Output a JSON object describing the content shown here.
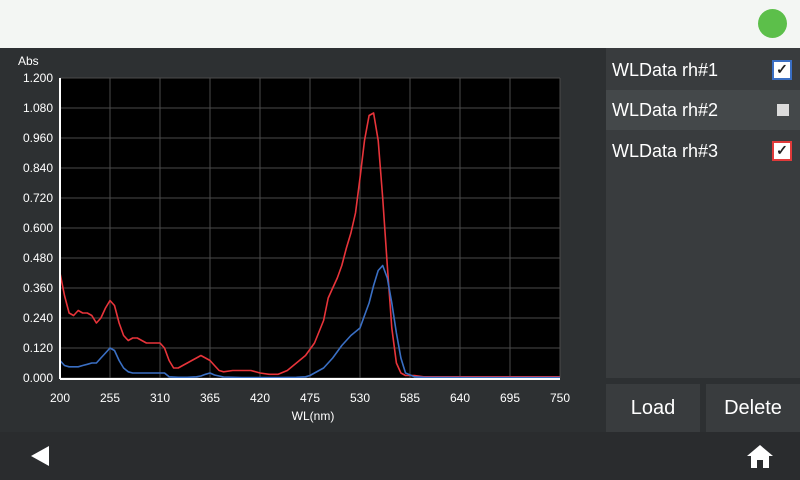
{
  "status": {
    "indicator_color": "#5cbf4a"
  },
  "series_list": [
    {
      "label": "WLData rh#1",
      "checked": true,
      "frame_color": "#3a6fc4"
    },
    {
      "label": "WLData rh#2",
      "checked": false,
      "selected": true
    },
    {
      "label": "WLData rh#3",
      "checked": true,
      "frame_color": "#e03a3a"
    }
  ],
  "buttons": {
    "load": "Load",
    "delete": "Delete"
  },
  "nav": {
    "back_icon": "back-arrow-icon",
    "home_icon": "home-icon"
  },
  "chart_data": {
    "type": "line",
    "ylabel": "Abs",
    "xlabel": "WL(nm)",
    "xlim": [
      200,
      750
    ],
    "ylim": [
      0,
      1.2
    ],
    "x_ticks": [
      "200",
      "255",
      "310",
      "365",
      "420",
      "475",
      "530",
      "585",
      "640",
      "695",
      "750"
    ],
    "y_ticks": [
      "1.200",
      "1.080",
      "0.960",
      "0.840",
      "0.720",
      "0.600",
      "0.480",
      "0.360",
      "0.240",
      "0.120",
      "0.000"
    ],
    "grid": true,
    "series": [
      {
        "color": "#e8343a",
        "x": [
          200,
          205,
          210,
          215,
          220,
          225,
          230,
          235,
          240,
          245,
          250,
          255,
          260,
          265,
          270,
          275,
          280,
          285,
          290,
          295,
          300,
          305,
          310,
          315,
          320,
          325,
          330,
          335,
          340,
          345,
          350,
          355,
          360,
          365,
          370,
          375,
          380,
          390,
          400,
          410,
          420,
          430,
          440,
          450,
          460,
          470,
          480,
          490,
          495,
          500,
          505,
          510,
          515,
          520,
          525,
          530,
          535,
          540,
          545,
          550,
          555,
          560,
          565,
          570,
          575,
          580,
          585,
          590,
          600,
          650,
          700,
          750
        ],
        "y": [
          0.42,
          0.33,
          0.26,
          0.25,
          0.27,
          0.26,
          0.26,
          0.25,
          0.22,
          0.24,
          0.28,
          0.31,
          0.29,
          0.22,
          0.17,
          0.15,
          0.16,
          0.16,
          0.15,
          0.14,
          0.14,
          0.14,
          0.14,
          0.12,
          0.07,
          0.04,
          0.04,
          0.05,
          0.06,
          0.07,
          0.08,
          0.09,
          0.08,
          0.07,
          0.05,
          0.03,
          0.025,
          0.03,
          0.03,
          0.03,
          0.02,
          0.015,
          0.015,
          0.03,
          0.06,
          0.09,
          0.14,
          0.23,
          0.32,
          0.36,
          0.4,
          0.45,
          0.52,
          0.58,
          0.66,
          0.8,
          0.95,
          1.05,
          1.06,
          0.95,
          0.72,
          0.45,
          0.2,
          0.06,
          0.02,
          0.01,
          0.01,
          0.01,
          0.005,
          0.005,
          0.005,
          0.005
        ]
      },
      {
        "color": "#3a6fc4",
        "x": [
          200,
          205,
          210,
          215,
          220,
          225,
          230,
          235,
          240,
          245,
          250,
          255,
          260,
          265,
          270,
          275,
          280,
          290,
          300,
          310,
          315,
          320,
          330,
          340,
          350,
          355,
          360,
          365,
          370,
          380,
          400,
          420,
          440,
          460,
          470,
          475,
          480,
          490,
          500,
          510,
          520,
          530,
          535,
          540,
          545,
          550,
          555,
          560,
          565,
          570,
          575,
          580,
          590,
          600,
          650,
          700,
          750
        ],
        "y": [
          0.07,
          0.05,
          0.045,
          0.045,
          0.045,
          0.05,
          0.055,
          0.06,
          0.06,
          0.08,
          0.1,
          0.12,
          0.11,
          0.07,
          0.04,
          0.025,
          0.02,
          0.02,
          0.02,
          0.02,
          0.02,
          0.005,
          0.003,
          0.003,
          0.005,
          0.008,
          0.015,
          0.02,
          0.012,
          0.004,
          0.002,
          0.002,
          0.002,
          0.003,
          0.005,
          0.01,
          0.02,
          0.04,
          0.08,
          0.13,
          0.17,
          0.2,
          0.25,
          0.3,
          0.37,
          0.43,
          0.45,
          0.4,
          0.3,
          0.18,
          0.08,
          0.02,
          0.005,
          0.003,
          0.002,
          0.002,
          0.002
        ]
      }
    ]
  }
}
